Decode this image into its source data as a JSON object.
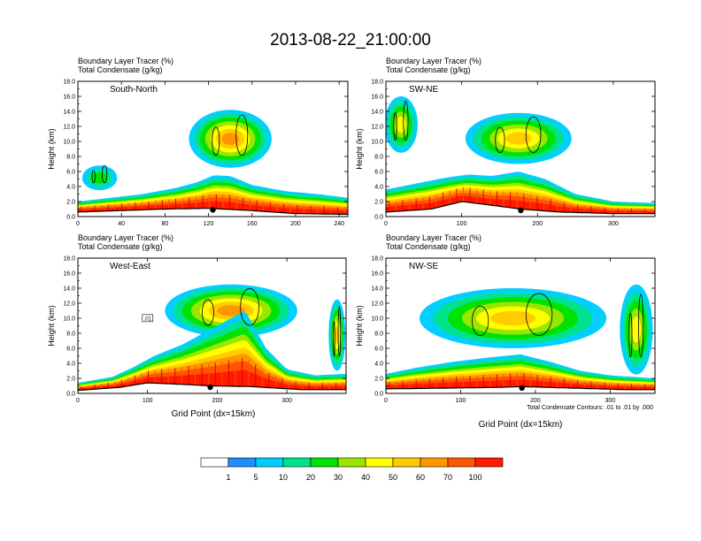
{
  "figure": {
    "title": "2013-08-22_21:00:00",
    "xaxis_title": "Grid Point (dx=15km)",
    "contour_note": "Total Condensate Contours: .01 to .01 by .000"
  },
  "chart_data": [
    {
      "type": "heatmap",
      "panel_label_1": "Boundary Layer Tracer   (%)",
      "panel_label_2": "Total Condensate   (g/kg)",
      "region": "South-North",
      "ylabel": "Height (km)",
      "xlabel": "",
      "xlim": [
        0,
        248
      ],
      "ylim": [
        0,
        18
      ],
      "xticks": [
        0,
        40,
        80,
        120,
        160,
        200,
        240
      ],
      "yticks": [
        0,
        2,
        4,
        6,
        8,
        10,
        12,
        14,
        16,
        18
      ],
      "ytick_labels": [
        "0.0",
        "2.0",
        "4.0",
        "6.0",
        "8.0",
        "10.0",
        "12.0",
        "14.0",
        "16.0",
        "18.0"
      ],
      "marker_x": 124,
      "bl_top_left": 1.6,
      "bl_top_right": 1.8,
      "ground": [
        [
          0,
          0.6
        ],
        [
          40,
          0.8
        ],
        [
          80,
          1.0
        ],
        [
          120,
          1.1
        ],
        [
          160,
          0.8
        ],
        [
          200,
          0.4
        ],
        [
          248,
          0.3
        ]
      ],
      "bl_tracer_profile": [
        [
          0,
          2
        ],
        [
          30,
          2.5
        ],
        [
          60,
          3.0
        ],
        [
          90,
          3.8
        ],
        [
          110,
          4.6
        ],
        [
          125,
          5.5
        ],
        [
          140,
          5.4
        ],
        [
          160,
          4.2
        ],
        [
          190,
          3.4
        ],
        [
          220,
          3.0
        ],
        [
          248,
          2.5
        ]
      ],
      "cloud_plumes": [
        {
          "xc": 140,
          "x_half_width": 38,
          "y_bottom": 6.5,
          "y_top": 14.2,
          "peak_pct": 60
        },
        {
          "xc": 20,
          "x_half_width": 16,
          "y_bottom": 3.5,
          "y_top": 6.8,
          "peak_pct": 20
        }
      ],
      "has_contour_label": false
    },
    {
      "type": "heatmap",
      "panel_label_1": "Boundary Layer Tracer   (%)",
      "panel_label_2": "Total Condensate   (g/kg)",
      "region": "SW-NE",
      "ylabel": "Height (km)",
      "xlabel": "",
      "xlim": [
        0,
        355
      ],
      "ylim": [
        0,
        18
      ],
      "xticks": [
        0,
        100,
        200,
        300
      ],
      "yticks": [
        0,
        2,
        4,
        6,
        8,
        10,
        12,
        14,
        16,
        18
      ],
      "ytick_labels": [
        "0.0",
        "2.0",
        "4.0",
        "6.0",
        "8.0",
        "10.0",
        "12.0",
        "14.0",
        "16.0",
        "18.0"
      ],
      "marker_x": 178,
      "bl_top_left": 2.0,
      "bl_top_right": 1.5,
      "ground": [
        [
          0,
          0.6
        ],
        [
          60,
          1.0
        ],
        [
          100,
          2.0
        ],
        [
          140,
          1.5
        ],
        [
          178,
          1.0
        ],
        [
          230,
          0.6
        ],
        [
          300,
          0.4
        ],
        [
          355,
          0.4
        ]
      ],
      "bl_tracer_profile": [
        [
          0,
          3.6
        ],
        [
          40,
          4.4
        ],
        [
          80,
          5.2
        ],
        [
          110,
          5.6
        ],
        [
          140,
          5.4
        ],
        [
          175,
          6.0
        ],
        [
          210,
          5.0
        ],
        [
          250,
          3.0
        ],
        [
          300,
          2.0
        ],
        [
          355,
          1.8
        ]
      ],
      "cloud_plumes": [
        {
          "xc": 175,
          "x_half_width": 70,
          "y_bottom": 7.0,
          "y_top": 13.8,
          "peak_pct": 55
        },
        {
          "xc": 20,
          "x_half_width": 22,
          "y_bottom": 8.5,
          "y_top": 16.0,
          "peak_pct": 40
        }
      ],
      "has_contour_label": false
    },
    {
      "type": "heatmap",
      "panel_label_1": "Boundary Layer Tracer   (%)",
      "panel_label_2": "Total Condensate   (g/kg)",
      "region": "West-East",
      "ylabel": "Height (km)",
      "xlabel": "Grid Point (dx=15km)",
      "xlim": [
        0,
        385
      ],
      "ylim": [
        0,
        18
      ],
      "xticks": [
        0,
        100,
        200,
        300
      ],
      "yticks": [
        0,
        2,
        4,
        6,
        8,
        10,
        12,
        14,
        16,
        18
      ],
      "ytick_labels": [
        "0.0",
        "2.0",
        "4.0",
        "6.0",
        "8.0",
        "10.0",
        "12.0",
        "14.0",
        "16.0",
        "18.0"
      ],
      "marker_x": 190,
      "bl_top_left": 1.2,
      "bl_top_right": 2.2,
      "ground": [
        [
          0,
          0.4
        ],
        [
          60,
          0.8
        ],
        [
          100,
          1.4
        ],
        [
          150,
          1.2
        ],
        [
          190,
          1.0
        ],
        [
          250,
          0.9
        ],
        [
          320,
          0.5
        ],
        [
          385,
          0.5
        ]
      ],
      "bl_tracer_profile": [
        [
          0,
          1.4
        ],
        [
          50,
          2.2
        ],
        [
          80,
          3.5
        ],
        [
          110,
          5.0
        ],
        [
          150,
          6.5
        ],
        [
          200,
          9.0
        ],
        [
          240,
          11.0
        ],
        [
          270,
          6.0
        ],
        [
          300,
          3.2
        ],
        [
          340,
          2.4
        ],
        [
          385,
          2.6
        ]
      ],
      "cloud_plumes": [
        {
          "xc": 220,
          "x_half_width": 95,
          "y_bottom": 7.5,
          "y_top": 14.5,
          "peak_pct": 60
        },
        {
          "xc": 372,
          "x_half_width": 12,
          "y_bottom": 3.0,
          "y_top": 12.5,
          "peak_pct": 50
        }
      ],
      "has_contour_label": true,
      "contour_label_text": ".01"
    },
    {
      "type": "heatmap",
      "panel_label_1": "Boundary Layer Tracer   (%)",
      "panel_label_2": "Total Condensate   (g/kg)",
      "region": "NW-SE",
      "ylabel": "Height (km)",
      "xlabel": "Grid Point (dx=15km)",
      "xlim": [
        0,
        360
      ],
      "ylim": [
        0,
        18
      ],
      "xticks": [
        0,
        100,
        200,
        300
      ],
      "yticks": [
        0,
        2,
        4,
        6,
        8,
        10,
        12,
        14,
        16,
        18
      ],
      "ytick_labels": [
        "0.0",
        "2.0",
        "4.0",
        "6.0",
        "8.0",
        "10.0",
        "12.0",
        "14.0",
        "16.0",
        "18.0"
      ],
      "marker_x": 182,
      "bl_top_left": 1.8,
      "bl_top_right": 1.6,
      "ground": [
        [
          0,
          0.6
        ],
        [
          80,
          0.7
        ],
        [
          150,
          0.8
        ],
        [
          182,
          0.9
        ],
        [
          250,
          0.7
        ],
        [
          320,
          0.5
        ],
        [
          360,
          0.5
        ]
      ],
      "bl_tracer_profile": [
        [
          0,
          2.6
        ],
        [
          40,
          3.4
        ],
        [
          90,
          4.2
        ],
        [
          140,
          4.8
        ],
        [
          180,
          5.2
        ],
        [
          220,
          4.2
        ],
        [
          260,
          3.0
        ],
        [
          300,
          2.4
        ],
        [
          360,
          2.0
        ]
      ],
      "cloud_plumes": [
        {
          "xc": 170,
          "x_half_width": 125,
          "y_bottom": 6.0,
          "y_top": 14.0,
          "peak_pct": 55
        },
        {
          "xc": 335,
          "x_half_width": 22,
          "y_bottom": 2.5,
          "y_top": 14.5,
          "peak_pct": 40
        }
      ],
      "has_contour_label": false
    }
  ],
  "colorbar": {
    "labels": [
      "1",
      "5",
      "10",
      "20",
      "30",
      "40",
      "50",
      "60",
      "70",
      "100"
    ],
    "colors": [
      "#ffffff",
      "#1f8fff",
      "#00cfff",
      "#00e38c",
      "#00e200",
      "#99e600",
      "#ffff00",
      "#ffcc00",
      "#ff9600",
      "#ff5500",
      "#ff1a00"
    ]
  }
}
